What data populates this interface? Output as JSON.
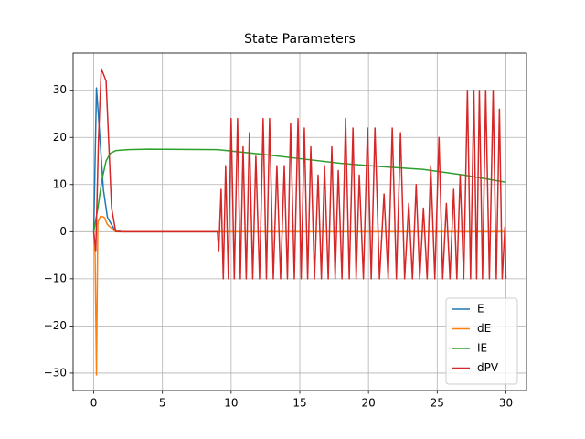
{
  "chart_data": {
    "type": "line",
    "title": "State Parameters",
    "xlim": [
      -1.5,
      31.5
    ],
    "ylim": [
      -33.7,
      37.9
    ],
    "xticks": [
      0,
      5,
      10,
      15,
      20,
      25,
      30
    ],
    "yticks": [
      {
        "value": -30,
        "label": "−30"
      },
      {
        "value": -20,
        "label": "−20"
      },
      {
        "value": -10,
        "label": "−10"
      },
      0,
      10,
      20,
      30
    ],
    "grid": true,
    "legend": "lower right",
    "series": [
      {
        "name": "E",
        "color": "#1f77b4",
        "x": [
          0,
          0.2,
          0.45,
          0.7,
          1.0,
          1.5,
          2.0,
          30
        ],
        "values": [
          0,
          30.5,
          20,
          9,
          3,
          0.5,
          0,
          0
        ]
      },
      {
        "name": "dE",
        "color": "#ff7f0e",
        "x": [
          0,
          0.1,
          0.2,
          0.3,
          0.5,
          0.75,
          1.0,
          1.5,
          2.0,
          30
        ],
        "values": [
          0,
          -5,
          -30.4,
          2,
          3.3,
          3.1,
          1.5,
          0.2,
          0,
          0
        ]
      },
      {
        "name": "IE",
        "color": "#2ca02c",
        "x": [
          0,
          0.3,
          0.6,
          0.9,
          1.2,
          1.6,
          2.5,
          4,
          9,
          12,
          15,
          18,
          21,
          24,
          27,
          30
        ],
        "values": [
          0,
          5,
          11,
          15,
          16.6,
          17.2,
          17.4,
          17.5,
          17.4,
          16.5,
          15.5,
          14.5,
          13.8,
          13.2,
          12,
          10.5
        ]
      },
      {
        "name": "dPV",
        "color": "#d62728",
        "x": [
          0,
          0.15,
          0.35,
          0.55,
          0.9,
          1.3,
          1.6,
          9.0,
          9.1,
          9.27,
          9.43,
          9.6,
          9.8,
          10.0,
          10.23,
          10.47,
          10.67,
          10.87,
          11.1,
          11.33,
          11.57,
          11.8,
          12.07,
          12.33,
          12.57,
          12.8,
          13.07,
          13.33,
          13.6,
          13.87,
          14.1,
          14.33,
          14.6,
          14.87,
          15.1,
          15.33,
          15.57,
          15.8,
          16.07,
          16.33,
          16.57,
          16.8,
          17.07,
          17.33,
          17.57,
          17.8,
          18.07,
          18.33,
          18.6,
          18.87,
          19.1,
          19.33,
          19.63,
          19.93,
          20.2,
          20.47,
          20.8,
          21.13,
          21.43,
          21.73,
          22.03,
          22.33,
          22.63,
          22.93,
          23.2,
          23.47,
          23.73,
          24.0,
          24.27,
          24.53,
          24.83,
          25.13,
          25.4,
          25.67,
          25.93,
          26.2,
          26.43,
          26.67,
          26.93,
          27.2,
          27.43,
          27.67,
          27.87,
          28.07,
          28.3,
          28.53,
          28.8,
          29.07,
          29.3,
          29.53,
          29.73,
          29.93,
          30
        ],
        "values": [
          0,
          -4,
          20,
          34.6,
          32,
          5,
          0,
          0,
          -4,
          9,
          -10,
          14,
          -10,
          24,
          -10,
          24,
          -10,
          18,
          -10,
          21,
          -10,
          16,
          -10,
          24,
          -10,
          24,
          -10,
          14,
          -10,
          14,
          -10,
          23,
          -10,
          24,
          -10,
          22,
          -10,
          18,
          -10,
          12,
          -10,
          14,
          -10,
          18,
          -10,
          13,
          -10,
          24,
          -10,
          22,
          -10,
          12,
          -10,
          22,
          -10,
          22,
          -10,
          8,
          -10,
          22,
          -10,
          21,
          -10,
          6,
          -10,
          10,
          -10,
          5,
          -10,
          14,
          -10,
          20,
          -10,
          6,
          -10,
          9,
          -10,
          12,
          -10,
          30,
          -10,
          30,
          -10,
          30,
          -10,
          30,
          -10,
          30,
          -10,
          26,
          -10,
          1,
          -10
        ]
      }
    ]
  }
}
